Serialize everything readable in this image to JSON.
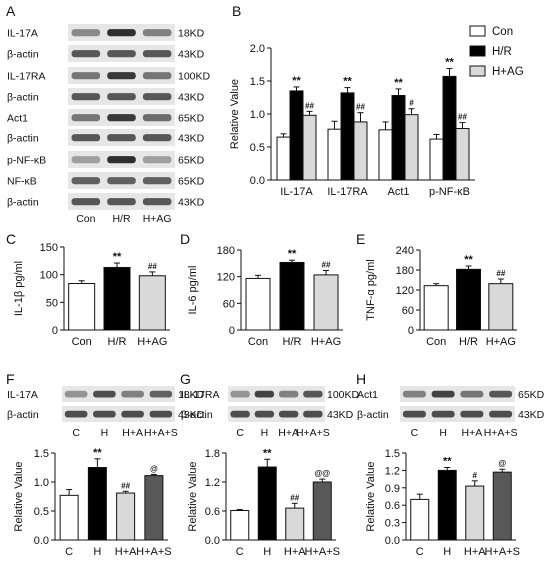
{
  "panel_letters": [
    "A",
    "B",
    "C",
    "D",
    "E",
    "F",
    "G",
    "H"
  ],
  "colors": {
    "con": "#ffffff",
    "hr": "#000000",
    "hag": "#d9d9d9",
    "has": "#595959",
    "band": "#1a1a1a",
    "blot_bg": "#e6e6e6"
  },
  "blot_A": {
    "rows": [
      {
        "label": "IL-17A",
        "kd": "18KD",
        "intensity": [
          0.45,
          0.9,
          0.5
        ]
      },
      {
        "label": "β-actin",
        "kd": "43KD",
        "intensity": [
          0.7,
          0.7,
          0.7
        ]
      },
      {
        "label": "IL-17RA",
        "kd": "100KD",
        "intensity": [
          0.55,
          0.85,
          0.55
        ]
      },
      {
        "label": "β-actin",
        "kd": "43KD",
        "intensity": [
          0.7,
          0.7,
          0.7
        ]
      },
      {
        "label": "Act1",
        "kd": "65KD",
        "intensity": [
          0.55,
          0.85,
          0.6
        ]
      },
      {
        "label": "β-actin",
        "kd": "43KD",
        "intensity": [
          0.7,
          0.7,
          0.7
        ]
      },
      {
        "label": "p-NF-κB",
        "kd": "65KD",
        "intensity": [
          0.35,
          0.9,
          0.35
        ]
      },
      {
        "label": "NF-κB",
        "kd": "65KD",
        "intensity": [
          0.65,
          0.65,
          0.65
        ]
      },
      {
        "label": "β-actin",
        "kd": "43KD",
        "intensity": [
          0.7,
          0.7,
          0.7
        ]
      }
    ],
    "lanes": [
      "Con",
      "H/R",
      "H+AG"
    ]
  },
  "blot_F": {
    "rows": [
      {
        "label": "IL-17A",
        "kd": "18KD",
        "intensity": [
          0.4,
          0.75,
          0.5,
          0.65
        ]
      },
      {
        "label": "β-actin",
        "kd": "43KD",
        "intensity": [
          0.75,
          0.75,
          0.75,
          0.75
        ]
      }
    ],
    "lanes": [
      "C",
      "H",
      "H+A",
      "H+A+S"
    ]
  },
  "blot_G": {
    "rows": [
      {
        "label": "IL-17RA",
        "kd": "100KD",
        "intensity": [
          0.4,
          0.8,
          0.5,
          0.7
        ]
      },
      {
        "label": "β-actin",
        "kd": "43KD",
        "intensity": [
          0.75,
          0.75,
          0.75,
          0.75
        ]
      }
    ],
    "lanes": [
      "C",
      "H",
      "H+A",
      "H+A+S"
    ]
  },
  "blot_H": {
    "rows": [
      {
        "label": "Act1",
        "kd": "65KD",
        "intensity": [
          0.5,
          0.8,
          0.55,
          0.7
        ]
      },
      {
        "label": "β-actin",
        "kd": "43KD",
        "intensity": [
          0.75,
          0.75,
          0.75,
          0.75
        ]
      }
    ],
    "lanes": [
      "C",
      "H",
      "H+A",
      "H+A+S"
    ]
  },
  "chart_data": [
    {
      "id": "B",
      "type": "bar",
      "categories": [
        "IL-17A",
        "IL-17RA",
        "Act1",
        "p-NF-κB"
      ],
      "series": [
        {
          "name": "Con",
          "values": [
            0.65,
            0.77,
            0.76,
            0.62
          ],
          "errors": [
            0.05,
            0.12,
            0.12,
            0.07
          ],
          "marks": [
            "",
            "",
            "",
            ""
          ]
        },
        {
          "name": "H/R",
          "values": [
            1.35,
            1.32,
            1.28,
            1.57
          ],
          "errors": [
            0.06,
            0.08,
            0.1,
            0.12
          ],
          "marks": [
            "**",
            "**",
            "**",
            "**"
          ]
        },
        {
          "name": "H+AG",
          "values": [
            0.98,
            0.88,
            0.99,
            0.78
          ],
          "errors": [
            0.06,
            0.14,
            0.09,
            0.09
          ],
          "marks": [
            "##",
            "##",
            "#",
            "##"
          ]
        }
      ],
      "ylabel": "Relative Value",
      "ylim": [
        0.0,
        2.0
      ],
      "yticks": [
        "0.0",
        "0.5",
        "1.0",
        "1.5",
        "2.0"
      ],
      "legend": "top-right"
    },
    {
      "id": "C",
      "type": "bar",
      "categories": [
        "Con",
        "H/R",
        "H+AG"
      ],
      "values": [
        84,
        113,
        98
      ],
      "errors": [
        5,
        8,
        7
      ],
      "marks": [
        "",
        "**",
        "##"
      ],
      "ylabel": "IL-1β pg/ml",
      "ylim": [
        0,
        150
      ],
      "yticks": [
        "0",
        "50",
        "100",
        "150"
      ]
    },
    {
      "id": "D",
      "type": "bar",
      "categories": [
        "Con",
        "H/R",
        "H+AG"
      ],
      "values": [
        116,
        152,
        124
      ],
      "errors": [
        7,
        5,
        10
      ],
      "marks": [
        "",
        "**",
        "##"
      ],
      "ylabel": "IL-6 pg/ml",
      "ylim": [
        0,
        180
      ],
      "yticks": [
        "0",
        "60",
        "120",
        "180"
      ]
    },
    {
      "id": "E",
      "type": "bar",
      "categories": [
        "Con",
        "H/R",
        "H+AG"
      ],
      "values": [
        133,
        182,
        139
      ],
      "errors": [
        6,
        10,
        14
      ],
      "marks": [
        "",
        "**",
        "##"
      ],
      "ylabel": "TNF-α pg/ml",
      "ylim": [
        0,
        240
      ],
      "yticks": [
        "0",
        "60",
        "120",
        "180",
        "240"
      ]
    },
    {
      "id": "F",
      "type": "bar",
      "categories": [
        "C",
        "H",
        "H+A",
        "H+A+S"
      ],
      "values": [
        0.77,
        1.25,
        0.81,
        1.11
      ],
      "errors": [
        0.1,
        0.15,
        0.03,
        0.02
      ],
      "marks": [
        "",
        "**",
        "##",
        "@"
      ],
      "ylabel": "Relative Value",
      "ylim": [
        0.0,
        1.5
      ],
      "yticks": [
        "0.0",
        "0.5",
        "1.0",
        "1.5"
      ]
    },
    {
      "id": "G",
      "type": "bar",
      "categories": [
        "C",
        "H",
        "H+A",
        "H+A+S"
      ],
      "values": [
        0.61,
        1.51,
        0.66,
        1.2
      ],
      "errors": [
        0.02,
        0.16,
        0.1,
        0.06
      ],
      "marks": [
        "",
        "**",
        "##",
        "@@"
      ],
      "ylabel": "Relative Value",
      "ylim": [
        0.0,
        1.8
      ],
      "yticks": [
        "0.0",
        "0.6",
        "1.2",
        "1.8"
      ]
    },
    {
      "id": "H",
      "type": "bar",
      "categories": [
        "C",
        "H",
        "H+A",
        "H+A+S"
      ],
      "values": [
        0.7,
        1.2,
        0.93,
        1.17
      ],
      "errors": [
        0.09,
        0.05,
        0.09,
        0.05
      ],
      "marks": [
        "",
        "**",
        "#",
        "@"
      ],
      "ylabel": "Relative Value",
      "ylim": [
        0.0,
        1.5
      ],
      "yticks": [
        "0.0",
        "0.3",
        "0.6",
        "0.9",
        "1.2",
        "1.5"
      ]
    }
  ]
}
